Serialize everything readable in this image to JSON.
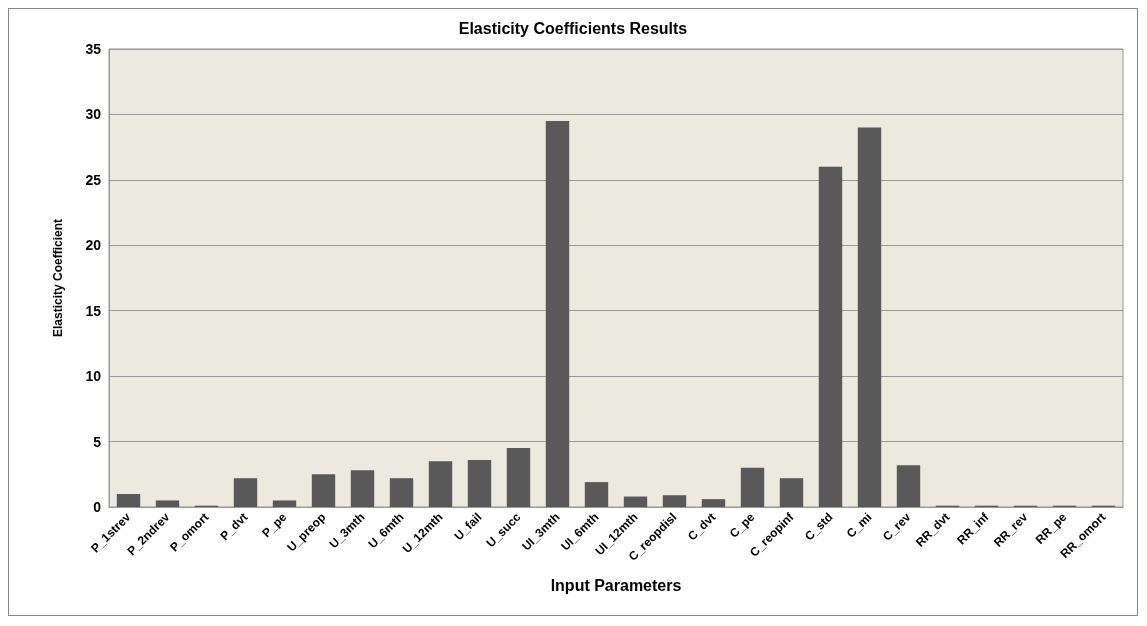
{
  "chart_data": {
    "type": "bar",
    "title": "Elasticity Coefficients Results",
    "xlabel": "Input Parameters",
    "ylabel": "Elasticity Coefficient",
    "categories": [
      "P_1strev",
      "P_2ndrev",
      "P_omort",
      "P_dvt",
      "P_pe",
      "U_preop",
      "U_3mth",
      "U_6mth",
      "U_12mth",
      "U_fail",
      "U_succ",
      "UI_3mth",
      "UI_6mth",
      "UI_12mth",
      "C_reopdisl",
      "C_dvt",
      "C_pe",
      "C_reopinf",
      "C_std",
      "C_mi",
      "C_rev",
      "RR_dvt",
      "RR_inf",
      "RR_rev",
      "RR_pe",
      "RR_omort"
    ],
    "values": [
      1.0,
      0.5,
      0.1,
      2.2,
      0.5,
      2.5,
      2.8,
      2.2,
      3.5,
      3.6,
      4.5,
      29.5,
      1.9,
      0.8,
      0.9,
      0.6,
      3.0,
      2.2,
      26,
      29,
      3.2,
      0.1,
      0.1,
      0.1,
      0.1,
      0.1
    ],
    "color": "#595959",
    "ylim": [
      0,
      35
    ],
    "yticks": [
      0,
      5,
      10,
      15,
      20,
      25,
      30,
      35
    ],
    "grid": "y"
  }
}
